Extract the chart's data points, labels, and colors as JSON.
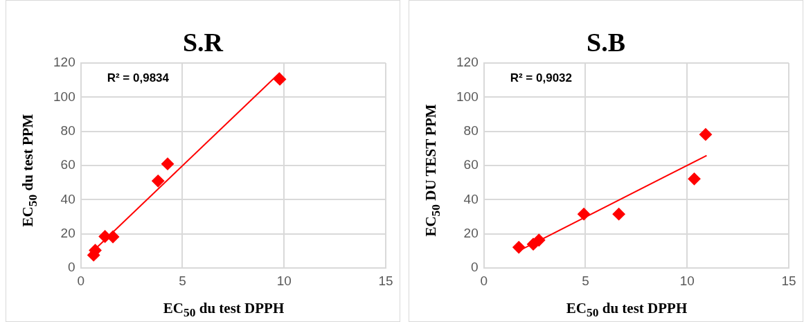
{
  "chart_data": [
    {
      "type": "scatter",
      "title": "S.R",
      "xlabel": "EC$_{50}$ du test DPPH",
      "ylabel": "EC$_{50}$ du test PPM",
      "annotations": [
        "R² = 0,9834"
      ],
      "xlim": [
        0,
        15
      ],
      "xticks": [
        0,
        5,
        10,
        15
      ],
      "ylim": [
        0,
        120
      ],
      "yticks": [
        0,
        20,
        40,
        60,
        80,
        100,
        120
      ],
      "grid": true,
      "legend": false,
      "series": [
        {
          "color": "#ff0000",
          "marker": "diamond",
          "x": [
            0.63,
            0.71,
            1.19,
            1.58,
            3.8,
            4.27,
            9.79
          ],
          "values": [
            7.6,
            10.4,
            18.5,
            18.3,
            51,
            61,
            110.5
          ]
        },
        {
          "type": "line",
          "color": "#ff0000",
          "marker": "none",
          "line_style": "solid",
          "x": [
            0.59,
            9.79
          ],
          "values": [
            9.8,
            114.3
          ]
        }
      ]
    },
    {
      "type": "scatter",
      "title": "S.B",
      "xlabel": "EC$_{50}$ du test DPPH",
      "ylabel": "EC$_{50}$ DU TEST PPM",
      "annotations": [
        "R² = 0,9032"
      ],
      "xlim": [
        0,
        15
      ],
      "xticks": [
        0,
        5,
        10,
        15
      ],
      "ylim": [
        0,
        120
      ],
      "yticks": [
        0,
        20,
        40,
        60,
        80,
        100,
        120
      ],
      "grid": true,
      "legend": false,
      "series": [
        {
          "color": "#ff0000",
          "marker": "diamond",
          "x": [
            1.72,
            2.43,
            2.71,
            4.92,
            6.64,
            10.35,
            10.91
          ],
          "values": [
            12.2,
            14,
            16.4,
            31.6,
            31.6,
            52.2,
            78.2
          ]
        },
        {
          "type": "line",
          "color": "#ff0000",
          "marker": "none",
          "line_style": "solid",
          "x": [
            1.72,
            10.96
          ],
          "values": [
            10.1,
            65.9
          ]
        }
      ]
    }
  ]
}
